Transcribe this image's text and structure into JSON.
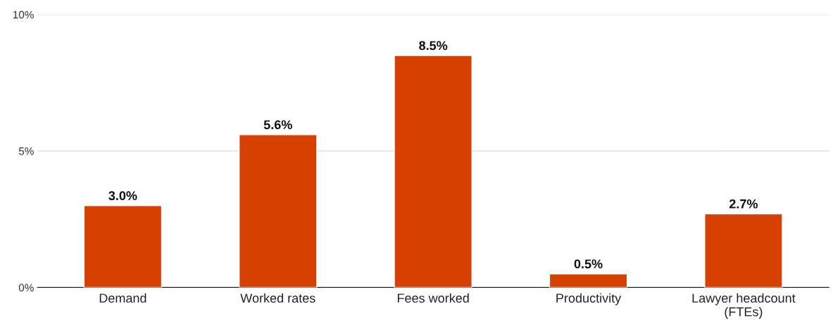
{
  "chart_data": {
    "type": "bar",
    "categories": [
      "Demand",
      "Worked rates",
      "Fees worked",
      "Productivity",
      "Lawyer headcount\n(FTEs)"
    ],
    "values": [
      3.0,
      5.6,
      8.5,
      0.5,
      2.7
    ],
    "value_labels": [
      "3.0%",
      "5.6%",
      "8.5%",
      "0.5%",
      "2.7%"
    ],
    "color": "#d64000",
    "ylim": [
      0,
      10
    ],
    "yticks": [
      {
        "value": 0,
        "label": "0%"
      },
      {
        "value": 5,
        "label": "5%"
      },
      {
        "value": 10,
        "label": "10%"
      }
    ],
    "grid": "y"
  }
}
